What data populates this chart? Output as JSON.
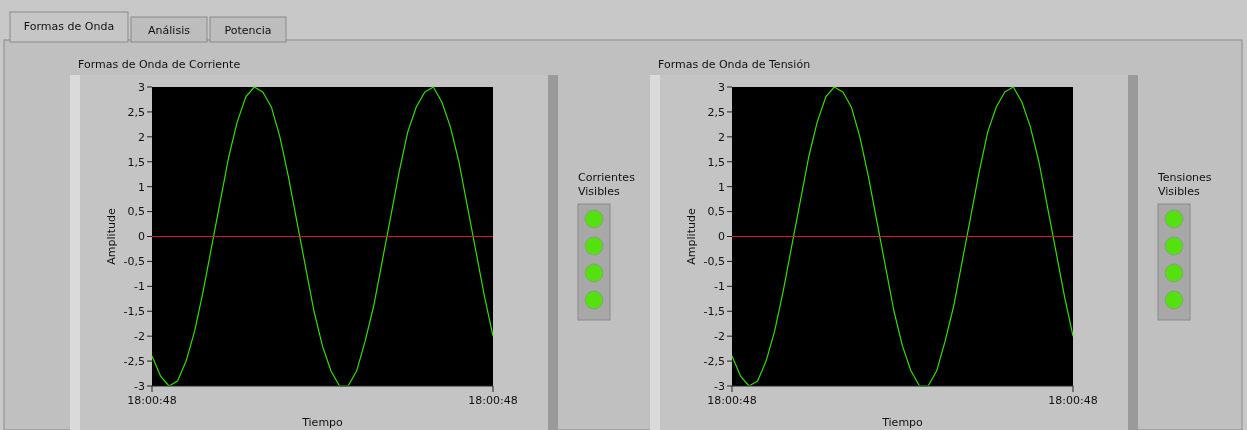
{
  "chart_data": [
    {
      "type": "line",
      "title": "Formas de Onda de Corriente",
      "xlabel": "Tiempo",
      "ylabel": "Amplitude",
      "annotations": [
        "Formas de Onda",
        "Análisis",
        "Potencia",
        "Corrientes Visibles"
      ],
      "categories": [
        "18:00:48",
        null,
        null,
        null,
        null,
        null,
        null,
        null,
        null,
        null,
        null,
        null,
        null,
        null,
        null,
        null,
        null,
        null,
        null,
        null,
        null,
        null,
        null,
        null,
        null,
        null,
        null,
        null,
        null,
        null,
        null,
        null,
        null,
        null,
        null,
        null,
        null,
        null,
        null,
        null,
        "18:00:48"
      ],
      "ylim": [
        -3,
        3
      ],
      "yticks": [
        {
          "value": 3,
          "label": "3"
        },
        {
          "value": 2.5,
          "label": "2,5"
        },
        {
          "value": 2,
          "label": "2"
        },
        {
          "value": 1.5,
          "label": "1,5"
        },
        {
          "value": 1,
          "label": "1"
        },
        {
          "value": 0.5,
          "label": "0,5"
        },
        {
          "value": 0,
          "label": "0"
        },
        {
          "value": -0.5,
          "label": "-0,5"
        },
        {
          "value": -1,
          "label": "-1"
        },
        {
          "value": -1.5,
          "label": "-1,5"
        },
        {
          "value": -2,
          "label": "-2"
        },
        {
          "value": -2.5,
          "label": "-2,5"
        },
        {
          "value": -3,
          "label": "-3"
        }
      ],
      "series": [
        {
          "color": "#33dd00",
          "values": [
            -2.4,
            -2.8,
            -3,
            -2.9,
            -2.5,
            -1.9,
            -1.1,
            -0.2,
            0.7,
            1.6,
            2.3,
            2.8,
            3,
            2.9,
            2.6,
            2,
            1.2,
            0.3,
            -0.6,
            -1.5,
            -2.2,
            -2.7,
            -3,
            -3,
            -2.7,
            -2.1,
            -1.4,
            -0.5,
            0.4,
            1.3,
            2.1,
            2.6,
            2.9,
            3,
            2.7,
            2.2,
            1.5,
            0.6,
            -0.3,
            -1.2,
            -2
          ]
        },
        {
          "color": "#d02020",
          "values": [
            0,
            0,
            0,
            0,
            0,
            0,
            0,
            0,
            0,
            0,
            0,
            0,
            0,
            0,
            0,
            0,
            0,
            0,
            0,
            0,
            0,
            0,
            0,
            0,
            0,
            0,
            0,
            0,
            0,
            0,
            0,
            0,
            0,
            0,
            0,
            0,
            0,
            0,
            0,
            0,
            0
          ]
        }
      ]
    },
    {
      "type": "line",
      "title": "Formas de Onda de Tensión",
      "xlabel": "Tiempo",
      "ylabel": "Amplitude",
      "annotations": [
        "Tensiones Visibles"
      ],
      "categories": [
        "18:00:48",
        null,
        null,
        null,
        null,
        null,
        null,
        null,
        null,
        null,
        null,
        null,
        null,
        null,
        null,
        null,
        null,
        null,
        null,
        null,
        null,
        null,
        null,
        null,
        null,
        null,
        null,
        null,
        null,
        null,
        null,
        null,
        null,
        null,
        null,
        null,
        null,
        null,
        null,
        null,
        "18:00:48"
      ],
      "ylim": [
        -3,
        3
      ],
      "yticks": [
        {
          "value": 3,
          "label": "3"
        },
        {
          "value": 2.5,
          "label": "2,5"
        },
        {
          "value": 2,
          "label": "2"
        },
        {
          "value": 1.5,
          "label": "1,5"
        },
        {
          "value": 1,
          "label": "1"
        },
        {
          "value": 0.5,
          "label": "0,5"
        },
        {
          "value": 0,
          "label": "0"
        },
        {
          "value": -0.5,
          "label": "-0,5"
        },
        {
          "value": -1,
          "label": "-1"
        },
        {
          "value": -1.5,
          "label": "-1,5"
        },
        {
          "value": -2,
          "label": "-2"
        },
        {
          "value": -2.5,
          "label": "-2,5"
        },
        {
          "value": -3,
          "label": "-3"
        }
      ],
      "series": [
        {
          "color": "#33dd00",
          "values": [
            -2.4,
            -2.8,
            -3,
            -2.9,
            -2.5,
            -1.9,
            -1.1,
            -0.2,
            0.7,
            1.6,
            2.3,
            2.8,
            3,
            2.9,
            2.6,
            2,
            1.2,
            0.3,
            -0.6,
            -1.5,
            -2.2,
            -2.7,
            -3,
            -3,
            -2.7,
            -2.1,
            -1.4,
            -0.5,
            0.4,
            1.3,
            2.1,
            2.6,
            2.9,
            3,
            2.7,
            2.2,
            1.5,
            0.6,
            -0.3,
            -1.2,
            -2
          ]
        },
        {
          "color": "#d02020",
          "values": [
            0,
            0,
            0,
            0,
            0,
            0,
            0,
            0,
            0,
            0,
            0,
            0,
            0,
            0,
            0,
            0,
            0,
            0,
            0,
            0,
            0,
            0,
            0,
            0,
            0,
            0,
            0,
            0,
            0,
            0,
            0,
            0,
            0,
            0,
            0,
            0,
            0,
            0,
            0,
            0,
            0
          ]
        }
      ]
    }
  ]
}
